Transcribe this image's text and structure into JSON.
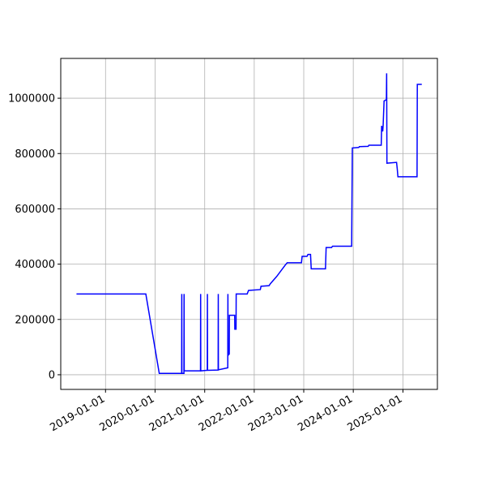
{
  "chart_data": {
    "type": "line",
    "x": [
      "2018-06-01",
      "2019-10-25",
      "2020-02-01",
      "2020-07-15",
      "2020-07-16",
      "2020-07-17",
      "2020-08-01",
      "2020-08-02",
      "2020-08-03",
      "2020-12-01",
      "2020-12-02",
      "2020-12-03",
      "2021-01-20",
      "2021-01-21",
      "2021-01-22",
      "2021-04-10",
      "2021-04-11",
      "2021-04-12",
      "2021-06-20",
      "2021-06-21",
      "2021-06-22",
      "2021-07-01",
      "2021-07-02",
      "2021-08-10",
      "2021-08-11",
      "2021-08-20",
      "2021-08-21",
      "2021-11-10",
      "2021-11-20",
      "2022-02-15",
      "2022-02-20",
      "2022-04-20",
      "2022-05-01",
      "2022-06-15",
      "2022-08-15",
      "2022-09-01",
      "2022-12-15",
      "2022-12-20",
      "2023-01-25",
      "2023-02-01",
      "2023-02-20",
      "2023-02-25",
      "2023-06-10",
      "2023-06-15",
      "2023-07-25",
      "2023-08-01",
      "2023-12-20",
      "2023-12-25",
      "2024-02-10",
      "2024-02-15",
      "2024-04-20",
      "2024-04-25",
      "2024-07-25",
      "2024-07-28",
      "2024-08-05",
      "2024-08-08",
      "2024-08-15",
      "2024-09-01",
      "2024-09-03",
      "2024-09-05",
      "2024-11-15",
      "2024-11-20",
      "2024-11-25",
      "2025-04-15",
      "2025-04-17",
      "2025-05-20"
    ],
    "series": [
      {
        "color": "#0000ff",
        "values": [
          292000,
          292000,
          5000,
          5000,
          292000,
          5000,
          5000,
          292000,
          14000,
          14000,
          292000,
          14000,
          16000,
          292000,
          16000,
          17000,
          292000,
          18000,
          25000,
          292000,
          70000,
          75000,
          215000,
          215000,
          165000,
          165000,
          292000,
          292000,
          305000,
          308000,
          320000,
          322000,
          330000,
          355000,
          395000,
          405000,
          405000,
          428000,
          428000,
          435000,
          435000,
          383000,
          383000,
          460000,
          460000,
          465000,
          465000,
          820000,
          822000,
          825000,
          826000,
          830000,
          830000,
          900000,
          880000,
          900000,
          990000,
          995000,
          1090000,
          765000,
          768000,
          745000,
          716000,
          716000,
          1050000,
          1050000
        ]
      }
    ],
    "xlim": [
      "2018-02-05",
      "2025-09-12"
    ],
    "xticks": [
      "2019-01-01",
      "2020-01-01",
      "2021-01-01",
      "2022-01-01",
      "2023-01-01",
      "2024-01-01",
      "2025-01-01"
    ],
    "ylim": [
      -53000,
      1144000
    ],
    "yticks": [
      0,
      200000,
      400000,
      600000,
      800000,
      1000000
    ],
    "grid": true
  }
}
